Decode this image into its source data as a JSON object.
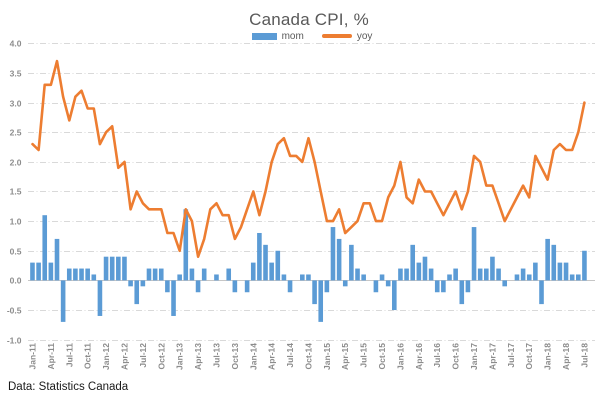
{
  "title": "Canada CPI, %",
  "source_note": "Data: Statistics Canada",
  "legend": [
    {
      "label": "mom",
      "type": "bar",
      "color": "#5B9BD5"
    },
    {
      "label": "yoy",
      "type": "line",
      "color": "#ED7D31"
    }
  ],
  "colors": {
    "bar": "#5B9BD5",
    "line": "#ED7D31",
    "grid": "#D9D9D9",
    "zero_axis": "#C6C6C6",
    "title_text": "#595959",
    "tick_text": "#8C8C8C",
    "legend_text": "#595959",
    "source_text": "#1A1A1A"
  },
  "chart_data": {
    "type": "bar",
    "subtype": "combo bar(mom) + line(yoy), monthly Jan-2011 to Jul-2018",
    "title": "Canada CPI, %",
    "xlabel": "",
    "ylabel": "",
    "ylim": [
      -1.0,
      4.0
    ],
    "y_step": 0.5,
    "y_ticks": [
      4.0,
      3.5,
      3.0,
      2.5,
      2.0,
      1.5,
      1.0,
      0.5,
      0.0,
      -0.5,
      -1.0
    ],
    "x_tick_every": 3,
    "grid": "horizontal dashed",
    "legend_position": "top-center",
    "categories": [
      "Jan-11",
      "Feb-11",
      "Mar-11",
      "Apr-11",
      "May-11",
      "Jun-11",
      "Jul-11",
      "Aug-11",
      "Sep-11",
      "Oct-11",
      "Nov-11",
      "Dec-11",
      "Jan-12",
      "Feb-12",
      "Mar-12",
      "Apr-12",
      "May-12",
      "Jun-12",
      "Jul-12",
      "Aug-12",
      "Sep-12",
      "Oct-12",
      "Nov-12",
      "Dec-12",
      "Jan-13",
      "Feb-13",
      "Mar-13",
      "Apr-13",
      "May-13",
      "Jun-13",
      "Jul-13",
      "Aug-13",
      "Sep-13",
      "Oct-13",
      "Nov-13",
      "Dec-13",
      "Jan-14",
      "Feb-14",
      "Mar-14",
      "Apr-14",
      "May-14",
      "Jun-14",
      "Jul-14",
      "Aug-14",
      "Sep-14",
      "Oct-14",
      "Nov-14",
      "Dec-14",
      "Jan-15",
      "Feb-15",
      "Mar-15",
      "Apr-15",
      "May-15",
      "Jun-15",
      "Jul-15",
      "Aug-15",
      "Sep-15",
      "Oct-15",
      "Nov-15",
      "Dec-15",
      "Jan-16",
      "Feb-16",
      "Mar-16",
      "Apr-16",
      "May-16",
      "Jun-16",
      "Jul-16",
      "Aug-16",
      "Sep-16",
      "Oct-16",
      "Nov-16",
      "Dec-16",
      "Jan-17",
      "Feb-17",
      "Mar-17",
      "Apr-17",
      "May-17",
      "Jun-17",
      "Jul-17",
      "Aug-17",
      "Sep-17",
      "Oct-17",
      "Nov-17",
      "Dec-17",
      "Jan-18",
      "Feb-18",
      "Mar-18",
      "Apr-18",
      "May-18",
      "Jun-18",
      "Jul-18"
    ],
    "series": [
      {
        "name": "mom",
        "type": "bar",
        "color": "#5B9BD5",
        "values": [
          0.3,
          0.3,
          1.1,
          0.3,
          0.7,
          -0.7,
          0.2,
          0.2,
          0.2,
          0.2,
          0.1,
          -0.6,
          0.4,
          0.4,
          0.4,
          0.4,
          -0.1,
          -0.4,
          -0.1,
          0.2,
          0.2,
          0.2,
          -0.2,
          -0.6,
          0.1,
          1.2,
          0.2,
          -0.2,
          0.2,
          0.0,
          0.1,
          0.0,
          0.2,
          -0.2,
          0.0,
          -0.2,
          0.3,
          0.8,
          0.6,
          0.3,
          0.5,
          0.1,
          -0.2,
          0.0,
          0.1,
          0.1,
          -0.4,
          -0.7,
          -0.2,
          0.9,
          0.7,
          -0.1,
          0.6,
          0.2,
          0.1,
          0.0,
          -0.2,
          0.1,
          -0.1,
          -0.5,
          0.2,
          0.2,
          0.6,
          0.3,
          0.4,
          0.2,
          -0.2,
          -0.2,
          0.1,
          0.2,
          -0.4,
          -0.2,
          0.9,
          0.2,
          0.2,
          0.4,
          0.2,
          -0.1,
          0.0,
          0.1,
          0.2,
          0.1,
          0.3,
          -0.4,
          0.7,
          0.6,
          0.3,
          0.3,
          0.1,
          0.1,
          0.5
        ]
      },
      {
        "name": "yoy",
        "type": "line",
        "color": "#ED7D31",
        "values": [
          2.3,
          2.2,
          3.3,
          3.3,
          3.7,
          3.1,
          2.7,
          3.1,
          3.2,
          2.9,
          2.9,
          2.3,
          2.5,
          2.6,
          1.9,
          2.0,
          1.2,
          1.5,
          1.3,
          1.2,
          1.2,
          1.2,
          0.8,
          0.8,
          0.5,
          1.2,
          1.0,
          0.4,
          0.7,
          1.2,
          1.3,
          1.1,
          1.1,
          0.7,
          0.9,
          1.2,
          1.5,
          1.1,
          1.5,
          2.0,
          2.3,
          2.4,
          2.1,
          2.1,
          2.0,
          2.4,
          2.0,
          1.5,
          1.0,
          1.0,
          1.2,
          0.8,
          0.9,
          1.0,
          1.3,
          1.3,
          1.0,
          1.0,
          1.4,
          1.6,
          2.0,
          1.4,
          1.3,
          1.7,
          1.5,
          1.5,
          1.3,
          1.1,
          1.3,
          1.5,
          1.2,
          1.5,
          2.1,
          2.0,
          1.6,
          1.6,
          1.3,
          1.0,
          1.2,
          1.4,
          1.6,
          1.4,
          2.1,
          1.9,
          1.7,
          2.2,
          2.3,
          2.2,
          2.2,
          2.5,
          3.0
        ]
      }
    ]
  }
}
